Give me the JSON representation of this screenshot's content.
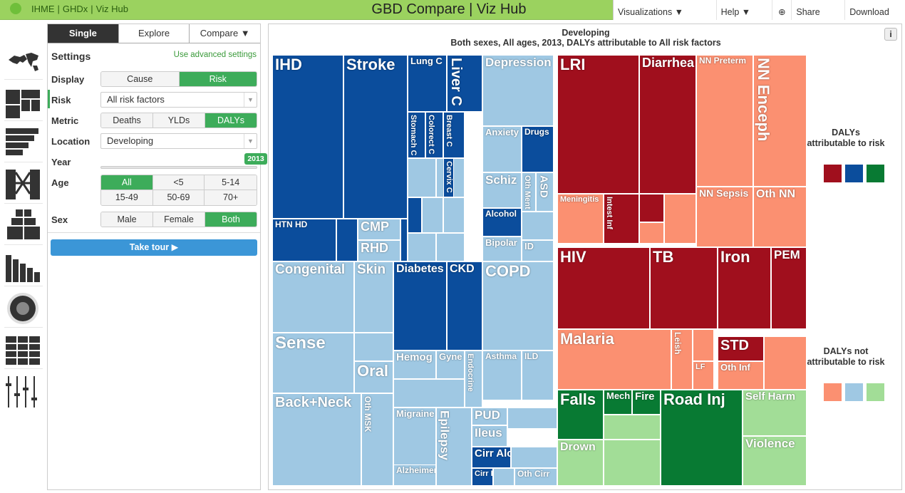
{
  "topbar": {
    "links": [
      "IHME",
      "GHDx",
      "Viz Hub"
    ],
    "title": "GBD Compare | Viz Hub",
    "menu": [
      "Visualizations ▼",
      "Help ▼",
      "Share",
      "Download"
    ]
  },
  "sidebar_icons": [
    "world-map-icon",
    "treemap-icon",
    "stacked-bars-icon",
    "arrow-diagram-icon",
    "pyramid-icon",
    "bar-chart-icon",
    "sunburst-icon",
    "heatmap-grid-icon",
    "slider-icon"
  ],
  "panel": {
    "tabs": [
      "Single",
      "Explore",
      "Compare ▼"
    ],
    "settings_title": "Settings",
    "advanced_link": "Use advanced settings",
    "display": {
      "label": "Display",
      "options": [
        "Cause",
        "Risk"
      ],
      "selected": "Risk"
    },
    "risk": {
      "label": "Risk",
      "value": "All risk factors"
    },
    "metric": {
      "label": "Metric",
      "options": [
        "Deaths",
        "YLDs",
        "DALYs"
      ],
      "selected": "DALYs"
    },
    "location": {
      "label": "Location",
      "value": "Developing"
    },
    "year": {
      "label": "Year",
      "value": "2013"
    },
    "age": {
      "label": "Age",
      "options": [
        "All",
        "<5",
        "5-14",
        "15-49",
        "50-69",
        "70+"
      ],
      "selected": "All"
    },
    "sex": {
      "label": "Sex",
      "options": [
        "Male",
        "Female",
        "Both"
      ],
      "selected": "Both"
    },
    "tour": "Take tour ▶"
  },
  "chart": {
    "title": "Developing",
    "subtitle": "Both sexes, All ages, 2013, DALYs attributable to All risk factors",
    "legend_attr": "DALYs attributable to risk",
    "legend_not": "DALYs not attributable to risk",
    "colors": {
      "attr": [
        "#a00f1d",
        "#0b4d9c",
        "#087a33"
      ],
      "not": [
        "#fb9071",
        "#9fc8e3",
        "#a2dd97"
      ]
    },
    "labels": [
      "IHD",
      "Stroke",
      "Lung C",
      "Liver C",
      "Stomach C",
      "Colorect C",
      "Breast C",
      "Cervix C",
      "HTN HD",
      "CMP",
      "RHD",
      "Depression",
      "Anxiety",
      "Drugs",
      "Schiz",
      "Oth Ment",
      "ASD",
      "Alcohol",
      "Bipolar",
      "ID",
      "Congenital",
      "Skin",
      "Sense",
      "Oral",
      "Back+Neck",
      "Oth MSK",
      "Diabetes",
      "CKD",
      "Hemog",
      "Gyne",
      "Endocrine",
      "Migraine",
      "Epilepsy",
      "Alzheimer",
      "COPD",
      "Asthma",
      "ILD",
      "PUD",
      "Ileus",
      "Cirr Alc",
      "Cirr HepC",
      "Oth Cirr",
      "LRI",
      "Diarrhea",
      "NN Preterm",
      "NN Enceph",
      "Meningitis",
      "Intest Inf",
      "NN Sepsis",
      "Oth NN",
      "HIV",
      "TB",
      "Iron",
      "PEM",
      "Malaria",
      "Leish",
      "LF",
      "STD",
      "Oth Inf",
      "Falls",
      "Mech",
      "Fire",
      "Drown",
      "Road Inj",
      "Self Harm",
      "Violence"
    ]
  }
}
